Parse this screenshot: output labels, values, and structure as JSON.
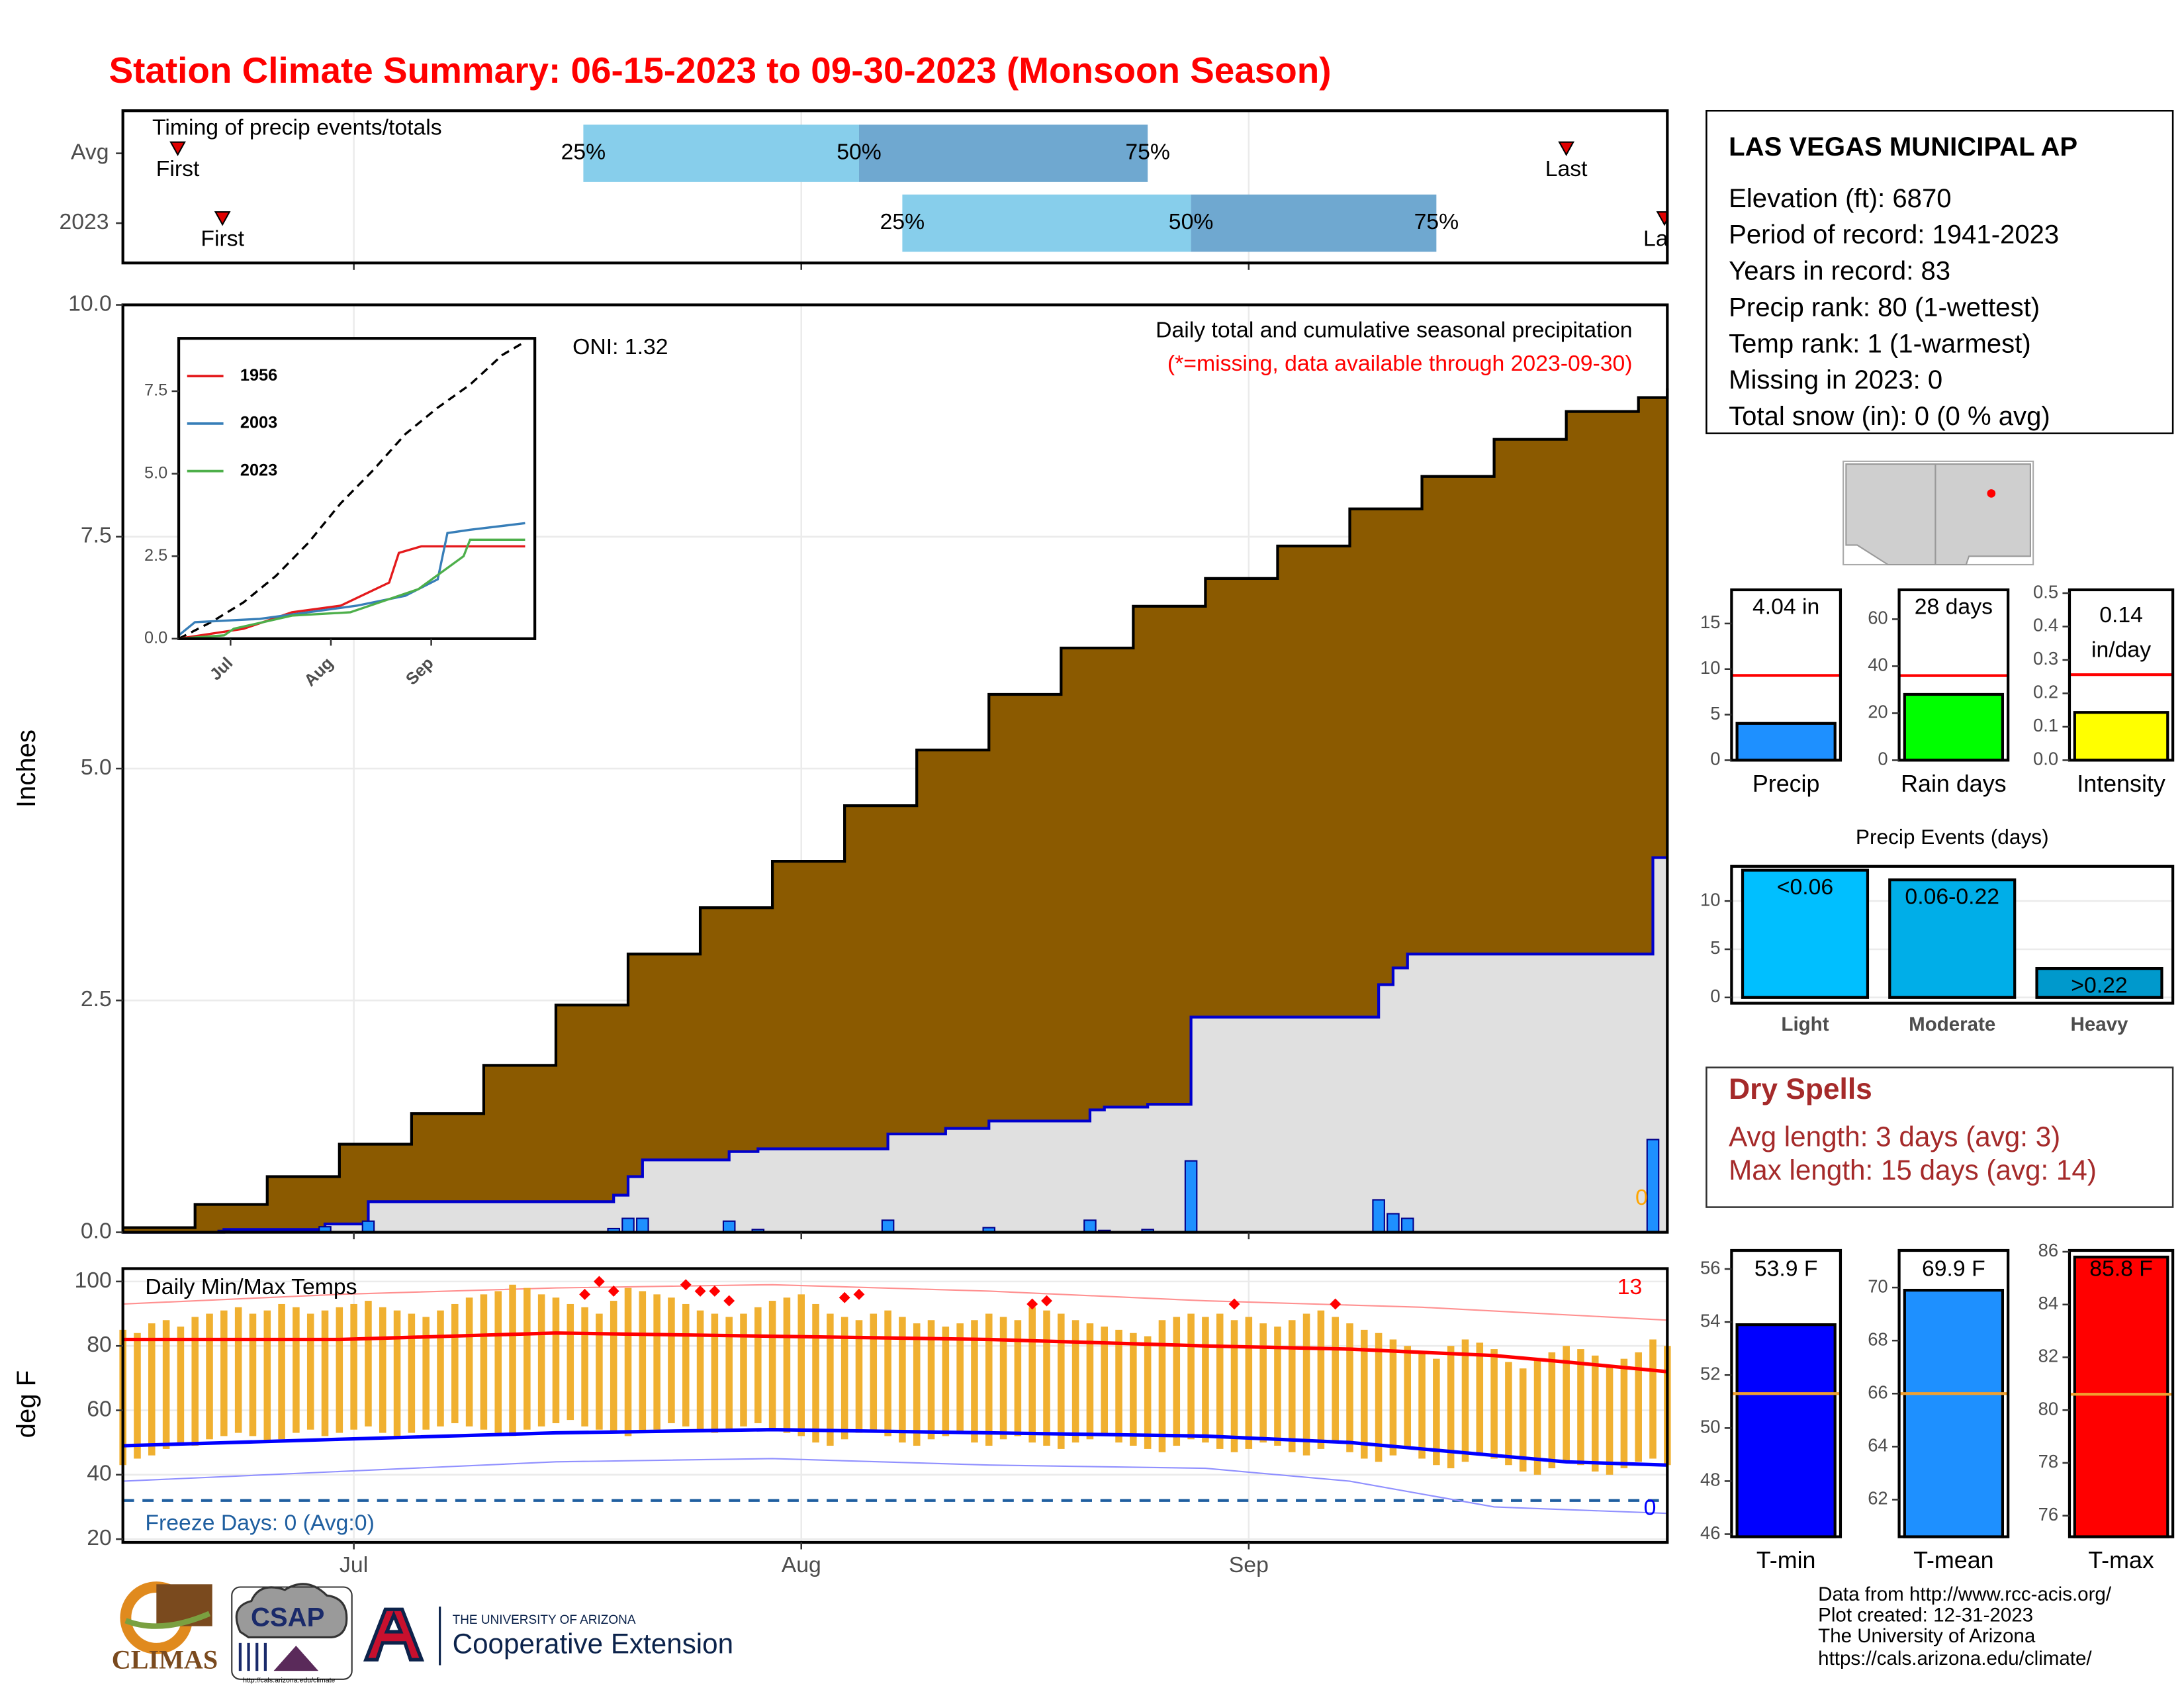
{
  "title": "Station Climate Summary: 06-15-2023 to 09-30-2023 (Monsoon Season)",
  "chart_data": [
    {
      "type": "timing",
      "title": "Timing of precip events/totals",
      "categories": [
        "Avg",
        "2023"
      ],
      "rows": [
        {
          "first": 3.8,
          "quartiles": [
            31.9,
            51,
            71
          ],
          "last": 100
        },
        {
          "first": 6.9,
          "quartiles": [
            54,
            74,
            91
          ],
          "last": 106.8
        }
      ],
      "quartile_labels": [
        "25%",
        "50%",
        "75%"
      ],
      "first_label": "First",
      "last_label": "Last",
      "colors": [
        "#87ceeb",
        "#6fa8d0"
      ],
      "marker_color": "#e00000",
      "xlim": [
        0,
        107
      ],
      "xticks": [
        16,
        47,
        78
      ],
      "grid": true
    },
    {
      "type": "step_area",
      "ylabel": "Inches",
      "xlim": [
        0,
        107
      ],
      "xticks": [
        16,
        47,
        78
      ],
      "ylim": [
        0,
        10
      ],
      "yticks": [
        {
          "value": 0,
          "label": "0.0"
        },
        2.5,
        {
          "value": 5,
          "label": "5.0"
        },
        7.5,
        {
          "value": 10,
          "label": "10.0"
        }
      ],
      "grid": true,
      "series": [
        {
          "color": "#8b5a00",
          "line_color": "#000000",
          "x": [
            0,
            5,
            10,
            15,
            20,
            25,
            30,
            35,
            40,
            45,
            50,
            55,
            60,
            65,
            70,
            75,
            80,
            85,
            90,
            95,
            100,
            105,
            107
          ],
          "values": [
            0.05,
            0.3,
            0.6,
            0.95,
            1.28,
            1.8,
            2.45,
            3.0,
            3.5,
            4.0,
            4.6,
            5.2,
            5.8,
            6.3,
            6.75,
            7.05,
            7.4,
            7.8,
            8.15,
            8.55,
            8.85,
            9.0,
            9.1
          ]
        },
        {
          "color": "#e0e0e0",
          "line_color": "#0000cd",
          "x": [
            0,
            7,
            14,
            17,
            34,
            35,
            36,
            42,
            44,
            53,
            57,
            60,
            67,
            68,
            71,
            74,
            87,
            88,
            89,
            106
          ],
          "values": [
            0,
            0.03,
            0.09,
            0.33,
            0.4,
            0.6,
            0.78,
            0.87,
            0.9,
            1.06,
            1.12,
            1.2,
            1.32,
            1.35,
            1.38,
            2.32,
            2.67,
            2.85,
            3.0,
            4.04
          ]
        }
      ],
      "bars": {
        "color": "#1e90ff",
        "x": [
          7,
          14,
          17,
          34,
          35,
          36,
          42,
          44,
          53,
          60,
          67,
          68,
          71,
          74,
          87,
          88,
          89,
          106
        ],
        "values": [
          0.02,
          0.06,
          0.12,
          0.04,
          0.15,
          0.15,
          0.12,
          0.03,
          0.13,
          0.05,
          0.13,
          0.02,
          0.03,
          0.77,
          0.35,
          0.2,
          0.15,
          1.0
        ]
      },
      "annotations": [
        {
          "text": "ONI: 1.32",
          "color": "#000000"
        },
        {
          "text": "Daily total and cumulative seasonal precipitation",
          "color": "#000000"
        },
        {
          "text": "(*=missing, data available through 2023-09-30)",
          "color": "#ff0000"
        },
        {
          "text": "0",
          "color": "#ffa500"
        }
      ]
    },
    {
      "type": "line",
      "xlim": [
        0,
        110
      ],
      "xticks": [
        {
          "value": 16,
          "label": "Jul"
        },
        {
          "value": 47,
          "label": "Aug"
        },
        {
          "value": 78,
          "label": "Sep"
        }
      ],
      "ylim": [
        0,
        9.1
      ],
      "yticks": [
        {
          "value": 0,
          "label": "0.0"
        },
        2.5,
        {
          "value": 5,
          "label": "5.0"
        },
        7.5
      ],
      "legend": "top-left",
      "series": [
        {
          "color": "#000000",
          "dashed": true,
          "x": [
            0,
            10,
            20,
            30,
            40,
            50,
            60,
            70,
            80,
            90,
            100,
            107
          ],
          "values": [
            0,
            0.5,
            1.1,
            1.9,
            2.9,
            4.1,
            5.1,
            6.2,
            7.0,
            7.7,
            8.6,
            9.0
          ]
        },
        {
          "name": "1956",
          "color": "#e41a1c",
          "x": [
            0,
            20,
            35,
            50,
            65,
            68,
            75,
            107
          ],
          "values": [
            0,
            0.3,
            0.8,
            1.0,
            1.7,
            2.6,
            2.8,
            2.8
          ]
        },
        {
          "name": "2003",
          "color": "#377eb8",
          "x": [
            0,
            5,
            25,
            40,
            55,
            70,
            80,
            83,
            90,
            107
          ],
          "values": [
            0.1,
            0.5,
            0.6,
            0.8,
            1.0,
            1.3,
            1.8,
            3.2,
            3.3,
            3.5
          ]
        },
        {
          "name": "2023",
          "color": "#4daf4a",
          "x": [
            0,
            14,
            17,
            35,
            53,
            74,
            88,
            90,
            107
          ],
          "values": [
            0,
            0.1,
            0.3,
            0.7,
            0.8,
            1.5,
            2.5,
            3.0,
            3.0
          ]
        }
      ]
    },
    {
      "type": "range_bar",
      "title": "Daily Min/Max Temps",
      "ylabel": "deg F",
      "xlim": [
        0,
        107
      ],
      "xticks": [
        {
          "value": 16,
          "label": "Jul"
        },
        {
          "value": 47,
          "label": "Aug"
        },
        {
          "value": 78,
          "label": "Sep"
        }
      ],
      "ylim": [
        19,
        104
      ],
      "yticks": [
        20,
        40,
        60,
        80,
        100
      ],
      "grid": true,
      "bar_color": "#f0b030",
      "x": [
        0,
        1,
        2,
        3,
        4,
        5,
        6,
        7,
        8,
        9,
        10,
        11,
        12,
        13,
        14,
        15,
        16,
        17,
        18,
        19,
        20,
        21,
        22,
        23,
        24,
        25,
        26,
        27,
        28,
        29,
        30,
        31,
        32,
        33,
        34,
        35,
        36,
        37,
        38,
        39,
        40,
        41,
        42,
        43,
        44,
        45,
        46,
        47,
        48,
        49,
        50,
        51,
        52,
        53,
        54,
        55,
        56,
        57,
        58,
        59,
        60,
        61,
        62,
        63,
        64,
        65,
        66,
        67,
        68,
        69,
        70,
        71,
        72,
        73,
        74,
        75,
        76,
        77,
        78,
        79,
        80,
        81,
        82,
        83,
        84,
        85,
        86,
        87,
        88,
        89,
        90,
        91,
        92,
        93,
        94,
        95,
        96,
        97,
        98,
        99,
        100,
        101,
        102,
        103,
        104,
        105,
        106,
        107
      ],
      "max": [
        85,
        84,
        87,
        88,
        86,
        89,
        90,
        91,
        92,
        90,
        91,
        93,
        92,
        90,
        91,
        92,
        93,
        94,
        92,
        91,
        90,
        89,
        91,
        93,
        95,
        96,
        97,
        99,
        98,
        96,
        95,
        93,
        92,
        90,
        94,
        98,
        97,
        96,
        95,
        93,
        91,
        90,
        89,
        90,
        92,
        94,
        95,
        96,
        93,
        90,
        89,
        88,
        90,
        91,
        89,
        87,
        88,
        86,
        87,
        88,
        90,
        89,
        88,
        92,
        91,
        90,
        88,
        87,
        86,
        85,
        84,
        83,
        88,
        89,
        90,
        89,
        90,
        88,
        89,
        87,
        86,
        88,
        90,
        91,
        89,
        87,
        85,
        84,
        82,
        80,
        78,
        76,
        80,
        82,
        81,
        79,
        75,
        73,
        76,
        78,
        80,
        79,
        77,
        74,
        76,
        78,
        82,
        80
      ],
      "min": [
        43,
        45,
        46,
        48,
        50,
        49,
        51,
        52,
        53,
        52,
        50,
        51,
        53,
        54,
        52,
        53,
        54,
        55,
        53,
        52,
        53,
        54,
        55,
        56,
        55,
        54,
        53,
        52,
        54,
        55,
        56,
        57,
        55,
        54,
        53,
        52,
        53,
        54,
        56,
        55,
        54,
        53,
        54,
        55,
        56,
        54,
        53,
        52,
        50,
        49,
        51,
        53,
        54,
        52,
        50,
        49,
        51,
        52,
        53,
        50,
        49,
        51,
        52,
        50,
        49,
        48,
        50,
        51,
        52,
        50,
        49,
        48,
        47,
        49,
        51,
        50,
        48,
        47,
        48,
        50,
        49,
        47,
        46,
        48,
        50,
        47,
        45,
        44,
        46,
        48,
        45,
        43,
        42,
        44,
        46,
        45,
        43,
        41,
        40,
        42,
        44,
        43,
        41,
        40,
        42,
        44,
        45,
        43
      ],
      "series": [
        {
          "color": "#ff9090",
          "x": [
            0,
            15,
            30,
            45,
            60,
            75,
            90,
            107
          ],
          "values": [
            93,
            96,
            98,
            99,
            97,
            94,
            92,
            88
          ]
        },
        {
          "color": "#9090ff",
          "x": [
            0,
            15,
            30,
            45,
            60,
            75,
            85,
            95,
            107
          ],
          "values": [
            38,
            41,
            44,
            45,
            43,
            42,
            38,
            30,
            28
          ]
        },
        {
          "color": "#ff0000",
          "x": [
            0,
            15,
            30,
            45,
            60,
            75,
            85,
            95,
            100,
            107
          ],
          "values": [
            82,
            82,
            84,
            83,
            82,
            80,
            79,
            77,
            75,
            72
          ]
        },
        {
          "color": "#0000ff",
          "x": [
            0,
            15,
            30,
            45,
            60,
            75,
            85,
            95,
            100,
            107
          ],
          "values": [
            49,
            51,
            53,
            54,
            53,
            52,
            50,
            46,
            44,
            43
          ]
        }
      ],
      "records": {
        "color": "#ff0000",
        "x": [
          32,
          33,
          34,
          39,
          40,
          41,
          42,
          50,
          51,
          63,
          64,
          77,
          84
        ],
        "values": [
          96,
          100,
          97,
          99,
          97,
          97,
          94,
          95,
          96,
          93,
          94,
          93,
          93
        ]
      },
      "freeze_line": 32,
      "freeze_color": "#1f5fa0",
      "annotations": [
        {
          "text": "13",
          "color": "#ff0000"
        },
        {
          "text": "0",
          "color": "#0000ff"
        },
        {
          "text": "Freeze Days: 0 (Avg:0)",
          "color": "#1f5fa0"
        }
      ]
    },
    {
      "type": "bar",
      "categories": [
        "Precip"
      ],
      "values": [
        4.04
      ],
      "value_labels": [
        "4.04 in"
      ],
      "color": "#1e90ff",
      "avg": 9.3,
      "avg_color": "#ff0000",
      "ylim": [
        0,
        18.7
      ],
      "yticks": [
        0,
        5,
        10,
        15
      ]
    },
    {
      "type": "bar",
      "categories": [
        "Rain days"
      ],
      "values": [
        28
      ],
      "value_labels": [
        "28 days"
      ],
      "color": "#00ff00",
      "avg": 36,
      "avg_color": "#ff0000",
      "ylim": [
        0,
        72.5
      ],
      "yticks": [
        0,
        20,
        40,
        60
      ]
    },
    {
      "type": "bar",
      "categories": [
        "Intensity"
      ],
      "values": [
        0.143
      ],
      "value_labels": [
        "0.14"
      ],
      "unit_label": "in/day",
      "color": "#ffff00",
      "avg": 0.256,
      "avg_color": "#ff0000",
      "ylim": [
        0,
        0.51
      ],
      "yticks": [
        {
          "value": 0,
          "label": "0.0"
        },
        0.1,
        0.2,
        0.3,
        0.4,
        0.5
      ]
    },
    {
      "type": "bar",
      "title": "Precip Events (days)",
      "categories": [
        "Light",
        "Moderate",
        "Heavy"
      ],
      "values": [
        13.2,
        12.2,
        3
      ],
      "bar_labels": [
        "<0.06",
        "0.06-0.22",
        ">0.22"
      ],
      "colors": [
        "#00bfff",
        "#00aee8",
        "#0099cc"
      ],
      "ylim": [
        -0.6,
        13.6
      ],
      "yticks": [
        0,
        5,
        10
      ],
      "grid": true
    },
    {
      "type": "bar",
      "categories": [
        "T-min"
      ],
      "values": [
        53.9
      ],
      "value_labels": [
        "53.9 F"
      ],
      "color": "#0000ff",
      "avg": 51.3,
      "avg_color": "#f0a030",
      "ylim": [
        45.9,
        56.7
      ],
      "yticks": [
        46,
        48,
        50,
        52,
        54,
        56
      ]
    },
    {
      "type": "bar",
      "categories": [
        "T-mean"
      ],
      "values": [
        69.9
      ],
      "value_labels": [
        "69.9 F"
      ],
      "color": "#1e90ff",
      "avg": 66,
      "avg_color": "#f0a030",
      "ylim": [
        60.6,
        71.4
      ],
      "yticks": [
        62,
        64,
        66,
        68,
        70
      ]
    },
    {
      "type": "bar",
      "categories": [
        "T-max"
      ],
      "values": [
        85.8
      ],
      "value_labels": [
        "85.8 F"
      ],
      "color": "#ff0000",
      "avg": 80.6,
      "avg_color": "#f0a030",
      "ylim": [
        75.2,
        86.05
      ],
      "yticks": [
        76,
        78,
        80,
        82,
        84,
        86
      ]
    }
  ],
  "station": {
    "name": "LAS VEGAS MUNICIPAL AP",
    "lines": [
      "Elevation (ft): 6870",
      "Period of record: 1941-2023",
      "Years in record: 83",
      "Precip rank: 80 (1-wettest)",
      "Temp rank: 1 (1-warmest)",
      "Missing in 2023: 0",
      "Total snow (in): 0 (0 % avg)"
    ]
  },
  "dry_spells": {
    "title": "Dry Spells",
    "lines": [
      "Avg length: 3 days (avg: 3)",
      "Max length: 15 days (avg: 14)"
    ]
  },
  "footer": {
    "lines": [
      "Data from http://www.rcc-acis.org/",
      "Plot created: 12-31-2023",
      "The University of Arizona",
      "https://cals.arizona.edu/climate/"
    ]
  },
  "logos": {
    "climas": "CLIMAS",
    "csap": "CSAP",
    "csap_url": "http://cals.arizona.edu/climate",
    "ua_name": "THE UNIVERSITY OF ARIZONA",
    "ua_unit": "Cooperative Extension"
  }
}
